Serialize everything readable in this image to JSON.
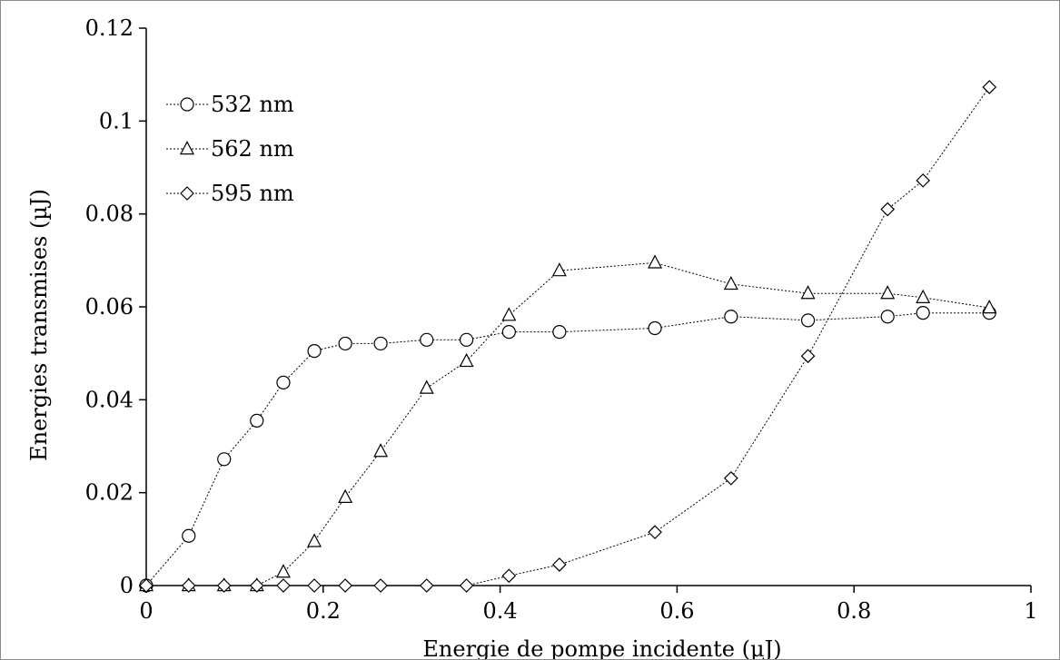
{
  "chart_data": {
    "type": "line",
    "title": "",
    "xlabel": "Energie de pompe incidente (µJ)",
    "ylabel": "Energies transmises (µJ)",
    "xlim": [
      0,
      1
    ],
    "ylim": [
      0,
      0.12
    ],
    "x_ticks": [
      "0",
      "0.2",
      "0.4",
      "0.6",
      "0.8",
      "1"
    ],
    "y_ticks": [
      "0",
      "0.02",
      "0.04",
      "0.06",
      "0.08",
      "0.1",
      "0.12"
    ],
    "grid": false,
    "legend_position": "top-left",
    "line_style": "dotted",
    "series": [
      {
        "name": "532 nm",
        "marker": "circle",
        "x": [
          0,
          0.048,
          0.088,
          0.125,
          0.155,
          0.19,
          0.225,
          0.265,
          0.317,
          0.362,
          0.41,
          0.467,
          0.575,
          0.661,
          0.748,
          0.838,
          0.878,
          0.953
        ],
        "y": [
          0,
          0.0107,
          0.0272,
          0.0355,
          0.0437,
          0.0505,
          0.0521,
          0.0521,
          0.0529,
          0.0529,
          0.0546,
          0.0546,
          0.0554,
          0.0579,
          0.0571,
          0.0579,
          0.0587,
          0.0587
        ]
      },
      {
        "name": "562 nm",
        "marker": "triangle",
        "x": [
          0,
          0.048,
          0.088,
          0.125,
          0.155,
          0.19,
          0.225,
          0.265,
          0.317,
          0.362,
          0.41,
          0.467,
          0.575,
          0.661,
          0.748,
          0.838,
          0.878,
          0.953
        ],
        "y": [
          0,
          0,
          0,
          0,
          0.0029,
          0.0095,
          0.019,
          0.0289,
          0.0425,
          0.0483,
          0.0582,
          0.0678,
          0.0695,
          0.0649,
          0.0629,
          0.0629,
          0.062,
          0.0598
        ]
      },
      {
        "name": "595 nm",
        "marker": "diamond",
        "x": [
          0,
          0.048,
          0.088,
          0.125,
          0.155,
          0.19,
          0.225,
          0.265,
          0.317,
          0.362,
          0.41,
          0.467,
          0.575,
          0.661,
          0.748,
          0.838,
          0.878,
          0.953
        ],
        "y": [
          0,
          0,
          0,
          0,
          0,
          0,
          0,
          0,
          0,
          0,
          0.0021,
          0.0045,
          0.0115,
          0.0231,
          0.0494,
          0.081,
          0.0872,
          0.1073
        ]
      }
    ]
  }
}
